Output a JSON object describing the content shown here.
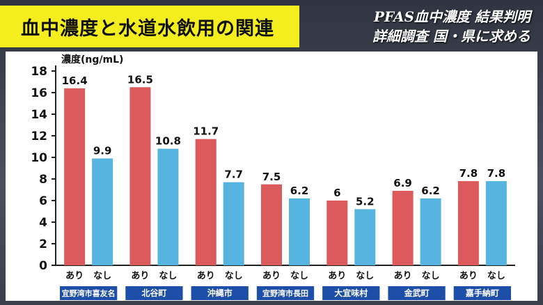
{
  "header": {
    "title": "血中濃度と水道水飲用の関連",
    "subtitle_line1": "PFAS血中濃度 結果判明",
    "subtitle_line2": "詳細調査 国・県に求める"
  },
  "colors": {
    "ari": "#dd5a5c",
    "nashi": "#55b4e0",
    "label_bg": "#1d4fa8"
  },
  "chart_data": {
    "type": "bar",
    "ylabel": "濃度(ng/mL)",
    "ylim": [
      0,
      18
    ],
    "yticks": [
      0,
      2,
      4,
      6,
      8,
      10,
      12,
      14,
      16,
      18
    ],
    "categories": [
      "宜野湾市喜友名",
      "北谷町",
      "沖縄市",
      "宜野湾市長田",
      "大宜味村",
      "金武町",
      "嘉手納町"
    ],
    "series": [
      {
        "name": "あり",
        "values": [
          16.4,
          16.5,
          11.7,
          7.5,
          6,
          6.9,
          7.8
        ]
      },
      {
        "name": "なし",
        "values": [
          9.9,
          10.8,
          7.7,
          6.2,
          5.2,
          6.2,
          7.8
        ]
      }
    ],
    "value_labels": {
      "あり": [
        "16.4",
        "16.5",
        "11.7",
        "7.5",
        "6",
        "6.9",
        "7.8"
      ],
      "なし": [
        "9.9",
        "10.8",
        "7.7",
        "6.2",
        "5.2",
        "6.2",
        "7.8"
      ]
    },
    "grid": false,
    "legend": "none"
  }
}
